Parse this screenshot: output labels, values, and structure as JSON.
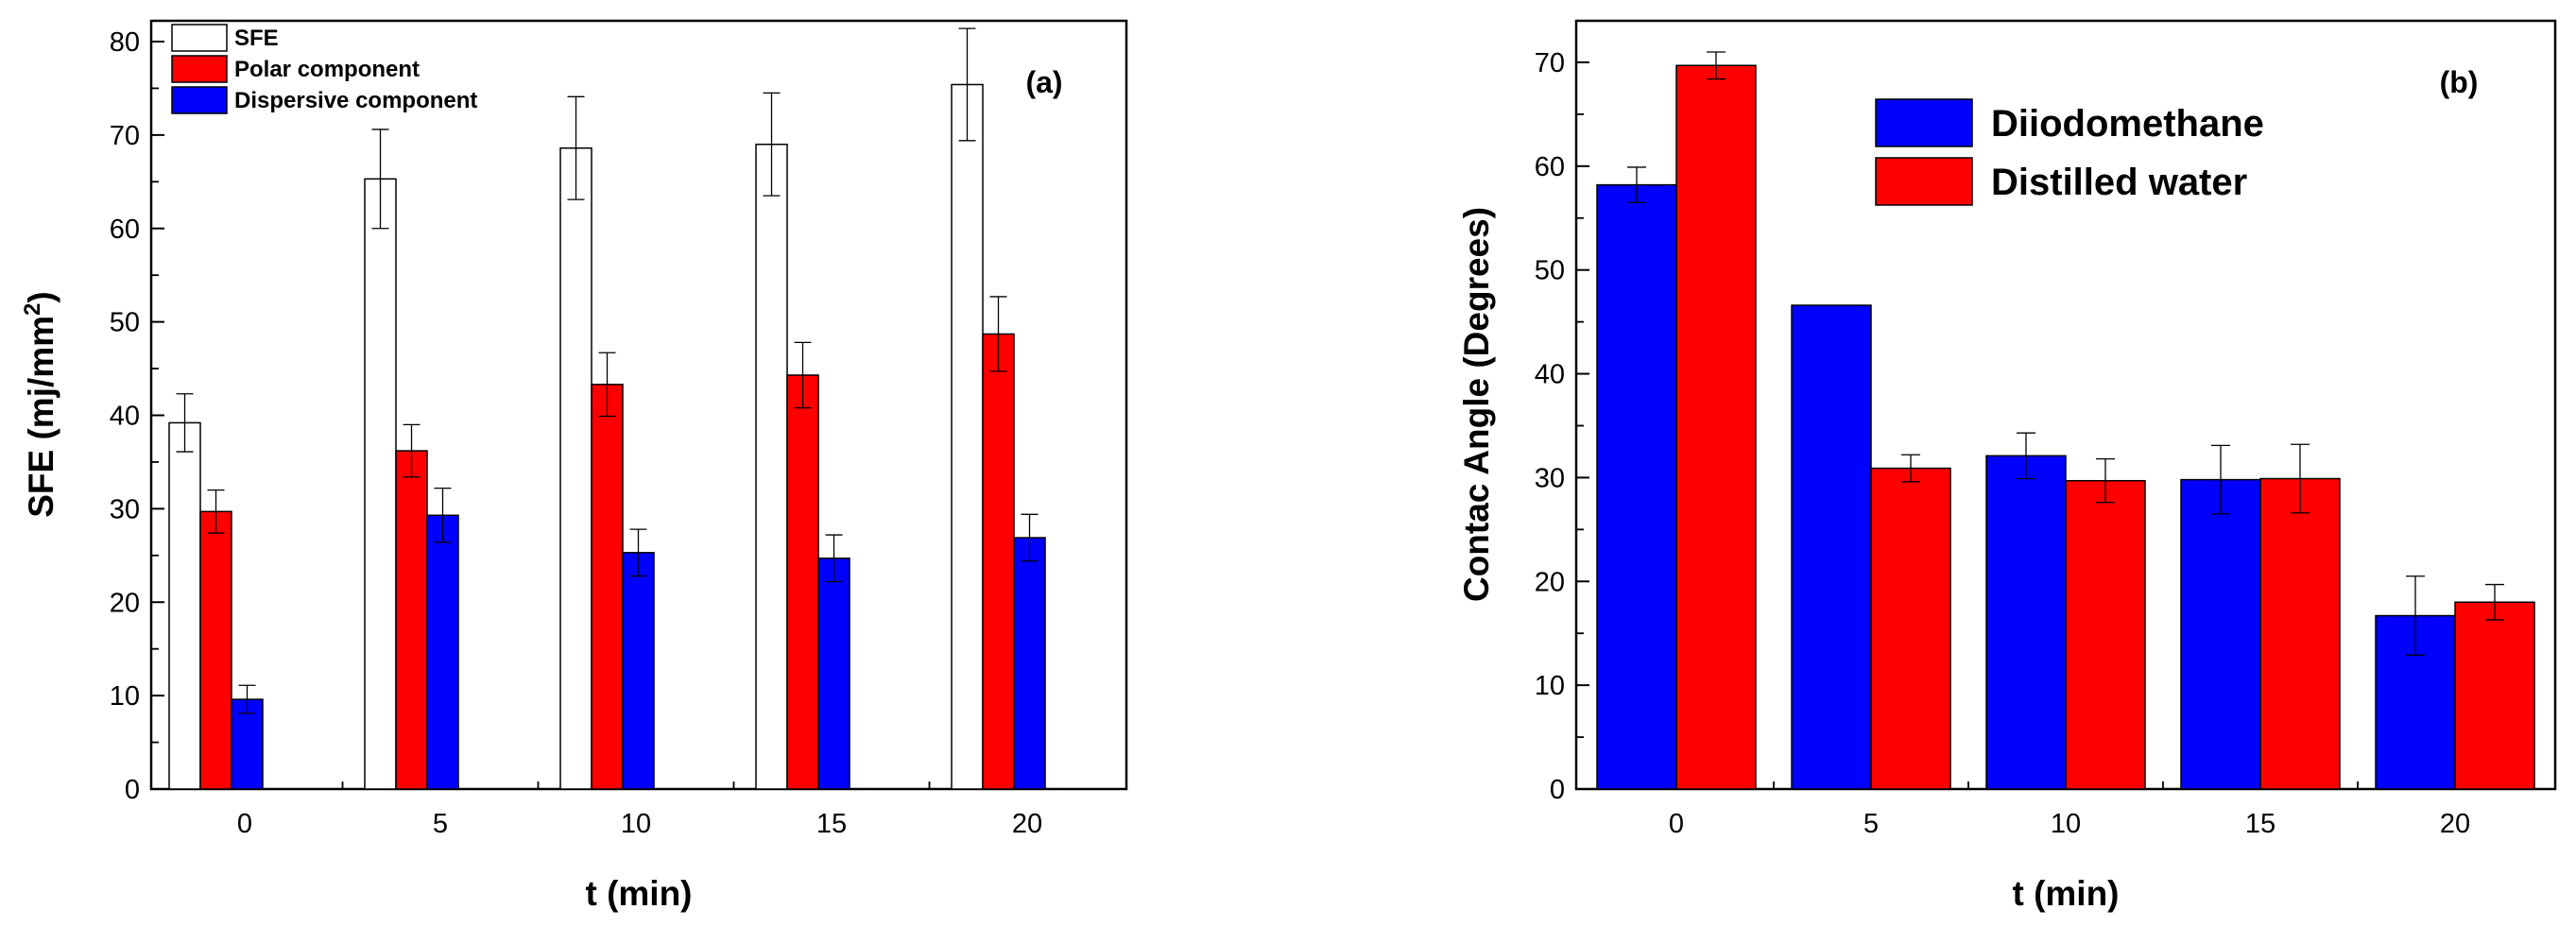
{
  "chart_data": [
    {
      "type": "bar",
      "panel_label": "(a)",
      "categories": [
        "0",
        "5",
        "10",
        "15",
        "20"
      ],
      "xlabel": "t (min)",
      "ylabel": "SFE (mj/mm",
      "ylabel_sup": "2",
      "ylabel_close": ")",
      "ylim": [
        0,
        80
      ],
      "yticks": [
        "0",
        "10",
        "20",
        "30",
        "40",
        "50",
        "60",
        "70",
        "80"
      ],
      "legend_position": "top-left",
      "series": [
        {
          "name": "SFE",
          "color": "#ffffff",
          "values": [
            39.2,
            65.3,
            68.6,
            69.0,
            75.4
          ],
          "errors": [
            3.1,
            5.3,
            5.5,
            5.5,
            6.0
          ]
        },
        {
          "name": "Polar component",
          "color": "#ff0000",
          "values": [
            29.7,
            36.2,
            43.3,
            44.3,
            48.7
          ],
          "errors": [
            2.3,
            2.8,
            3.4,
            3.5,
            4.0
          ]
        },
        {
          "name": "Dispersive component",
          "color": "#0000ff",
          "values": [
            9.6,
            29.3,
            25.3,
            24.7,
            26.9
          ],
          "errors": [
            1.5,
            2.9,
            2.5,
            2.5,
            2.5
          ]
        }
      ]
    },
    {
      "type": "bar",
      "panel_label": "(b)",
      "categories": [
        "0",
        "5",
        "10",
        "15",
        "20"
      ],
      "xlabel": "t (min)",
      "ylabel": "Contac Angle (Degrees)",
      "ylim": [
        0,
        72
      ],
      "yticks": [
        "0",
        "10",
        "20",
        "30",
        "40",
        "50",
        "60",
        "70"
      ],
      "legend_position": "top-center",
      "series": [
        {
          "name": "Diiodomethane",
          "color": "#0000ff",
          "values": [
            58.2,
            46.6,
            32.1,
            29.8,
            16.7
          ],
          "errors": [
            1.7,
            0,
            2.2,
            3.3,
            3.8
          ]
        },
        {
          "name": "Distilled water",
          "color": "#ff0000",
          "values": [
            69.7,
            30.9,
            29.7,
            29.9,
            18.0
          ],
          "errors": [
            1.3,
            1.3,
            2.1,
            3.3,
            1.7
          ]
        }
      ]
    }
  ]
}
